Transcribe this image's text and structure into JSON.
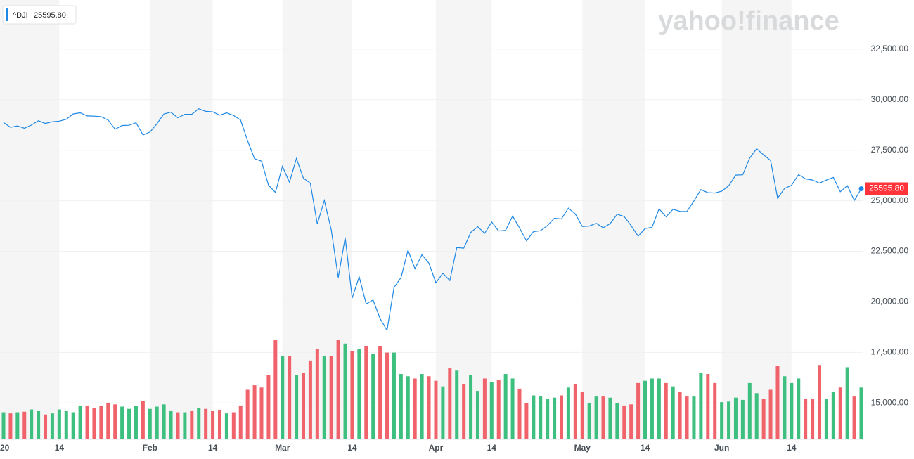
{
  "chart_data": {
    "type": "line",
    "watermark": "yahoo!finance",
    "categories": [
      "20",
      null,
      null,
      null,
      null,
      null,
      null,
      null,
      "14",
      null,
      null,
      null,
      null,
      null,
      null,
      null,
      null,
      null,
      null,
      null,
      null,
      "Feb",
      null,
      null,
      null,
      null,
      null,
      null,
      null,
      null,
      "14",
      null,
      null,
      null,
      null,
      null,
      null,
      null,
      null,
      null,
      "Mar",
      null,
      null,
      null,
      null,
      null,
      null,
      null,
      null,
      null,
      "14",
      null,
      null,
      null,
      null,
      null,
      null,
      null,
      null,
      null,
      null,
      null,
      "Apr",
      null,
      null,
      null,
      null,
      null,
      null,
      null,
      "14",
      null,
      null,
      null,
      null,
      null,
      null,
      null,
      null,
      null,
      null,
      null,
      null,
      "May",
      null,
      null,
      null,
      null,
      null,
      null,
      null,
      null,
      "14",
      null,
      null,
      null,
      null,
      null,
      null,
      null,
      null,
      null,
      null,
      "Jun",
      null,
      null,
      null,
      null,
      null,
      null,
      null,
      null,
      null,
      "14",
      null,
      null,
      null,
      null,
      null,
      null,
      null,
      null,
      null,
      null
    ],
    "series": [
      {
        "name": "^DJI",
        "color": "#1e88e5",
        "last_label": "25595.80",
        "values": [
          28869,
          28634,
          28703,
          28584,
          28745,
          28957,
          28824,
          28907,
          28940,
          29030,
          29298,
          29348,
          29196,
          29186,
          29160,
          28990,
          28536,
          28723,
          28734,
          28859,
          28256,
          28400,
          28807,
          29291,
          29380,
          29103,
          29277,
          29276,
          29551,
          29424,
          29398,
          29232,
          29348,
          29219,
          28992,
          27961,
          27081,
          26957,
          25766,
          25409,
          26703,
          25917,
          27091,
          26121,
          25865,
          23851,
          25018,
          23553,
          21201,
          23186,
          20189,
          21237,
          19899,
          20087,
          19174,
          18592,
          20705,
          21200,
          22552,
          21637,
          22327,
          21917,
          20944,
          21413,
          21053,
          22680,
          22654,
          23434,
          23719,
          23391,
          23950,
          23504,
          23538,
          24242,
          23650,
          23019,
          23475,
          23515,
          23775,
          24134,
          24101,
          24634,
          24346,
          23724,
          23750,
          23883,
          23665,
          23875,
          24331,
          24222,
          23764,
          23248,
          23625,
          23685,
          24597,
          24207,
          24576,
          24474,
          24465,
          24995,
          25548,
          25401,
          25383,
          25475,
          25742,
          26270,
          26282,
          27111,
          27572,
          27272,
          26990,
          25128,
          25606,
          25763,
          26290,
          26080,
          26025,
          25872,
          26024,
          26156,
          25445,
          25746,
          25016,
          25595.8
        ]
      }
    ],
    "volume": {
      "up_color": "#3dbf7f",
      "down_color": "#f0636b",
      "vlim": [
        0,
        3900
      ],
      "values": [
        240,
        230,
        240,
        245,
        265,
        250,
        220,
        230,
        265,
        250,
        240,
        300,
        300,
        275,
        295,
        325,
        310,
        290,
        270,
        295,
        340,
        270,
        290,
        310,
        250,
        240,
        240,
        250,
        280,
        270,
        250,
        260,
        230,
        240,
        300,
        440,
        480,
        460,
        570,
        880,
        740,
        740,
        570,
        590,
        700,
        800,
        740,
        740,
        880,
        850,
        780,
        800,
        830,
        760,
        830,
        770,
        770,
        580,
        560,
        540,
        580,
        560,
        520,
        470,
        630,
        610,
        490,
        570,
        430,
        540,
        510,
        530,
        580,
        540,
        450,
        320,
        390,
        380,
        360,
        370,
        390,
        460,
        490,
        420,
        320,
        380,
        380,
        370,
        320,
        300,
        310,
        500,
        520,
        540,
        540,
        500,
        470,
        420,
        380,
        380,
        590,
        580,
        500,
        330,
        335,
        370,
        350,
        500,
        410,
        360,
        440,
        650,
        560,
        500,
        540,
        360,
        360,
        660,
        360,
        420,
        460,
        640,
        380,
        460
      ]
    },
    "ylim": [
      13200,
      34930
    ],
    "yticks": [
      {
        "value": 15000,
        "label": "15,000.00"
      },
      {
        "value": 17500,
        "label": "17,500.00"
      },
      {
        "value": 20000,
        "label": "20,000.00"
      },
      {
        "value": 22500,
        "label": "22,500.00"
      },
      {
        "value": 25000,
        "label": "25,000.00"
      },
      {
        "value": 27500,
        "label": "27,500.00"
      },
      {
        "value": 30000,
        "label": "30,000.00"
      },
      {
        "value": 32500,
        "label": "32,500.00"
      }
    ],
    "grid": true
  }
}
